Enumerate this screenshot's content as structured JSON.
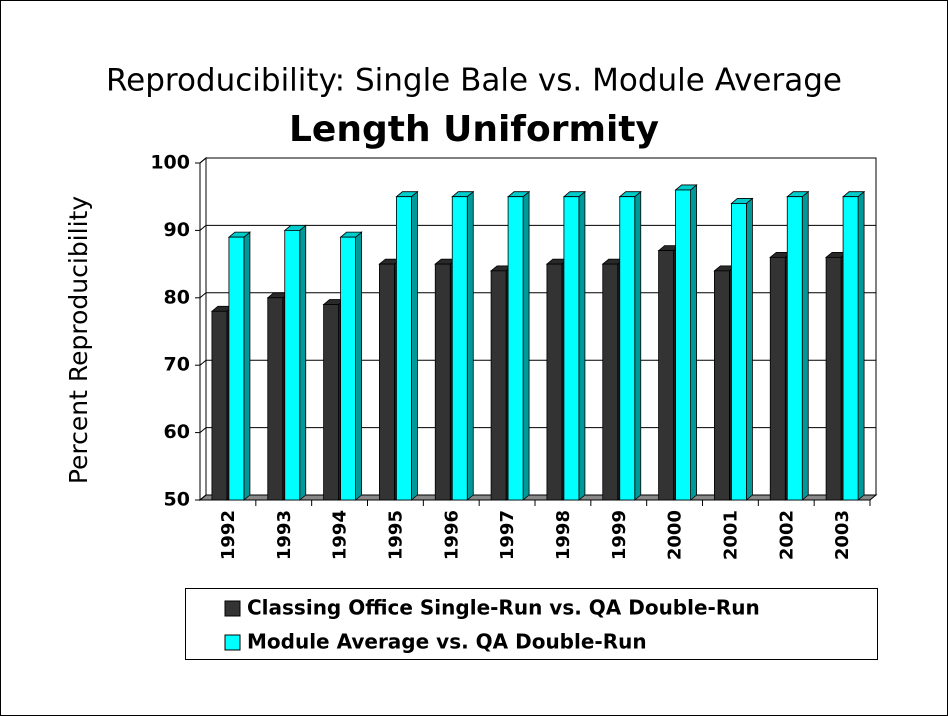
{
  "chart_data": {
    "type": "bar",
    "title": "Reproducibility: Single Bale vs. Module Average",
    "subtitle": "Length Uniformity",
    "y_label": "Percent Reproducibility",
    "categories": [
      "1992",
      "1993",
      "1994",
      "1995",
      "1996",
      "1997",
      "1998",
      "1999",
      "2000",
      "2001",
      "2002",
      "2003"
    ],
    "series": [
      {
        "name": "Classing Office Single-Run vs. QA Double-Run",
        "color": "#333333",
        "values": [
          78,
          80,
          79,
          85,
          85,
          84,
          85,
          85,
          87,
          84,
          86,
          86
        ]
      },
      {
        "name": "Module Average vs. QA Double-Run",
        "color": "#00ffff",
        "values": [
          89,
          90,
          89,
          95,
          95,
          95,
          95,
          95,
          96,
          94,
          95,
          95
        ]
      }
    ],
    "ylim": [
      50,
      100
    ],
    "yticks": [
      50,
      60,
      70,
      80,
      90,
      100
    ],
    "grid": true
  }
}
